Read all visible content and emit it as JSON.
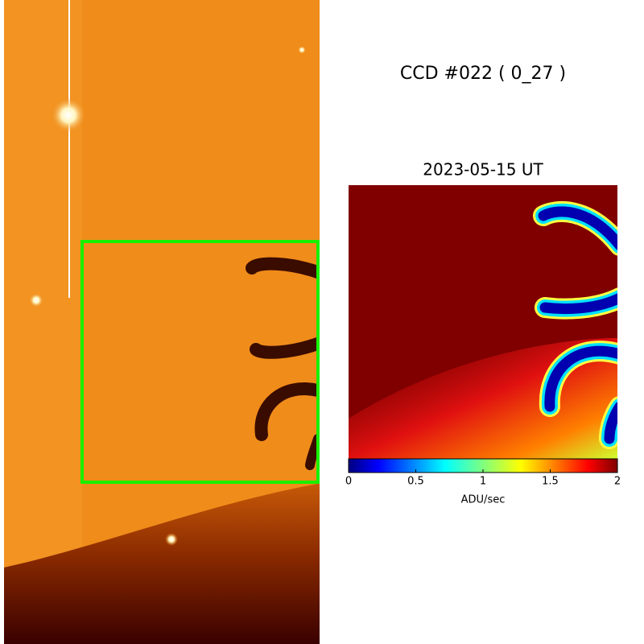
{
  "title": "CCD #022 ( 0_27 )",
  "subtitle": "2023-05-15 UT",
  "colorbar": {
    "lim": [
      0,
      2
    ],
    "ticks": [
      0,
      0.5,
      1,
      1.5,
      2
    ],
    "label": "ADU/sec"
  }
}
